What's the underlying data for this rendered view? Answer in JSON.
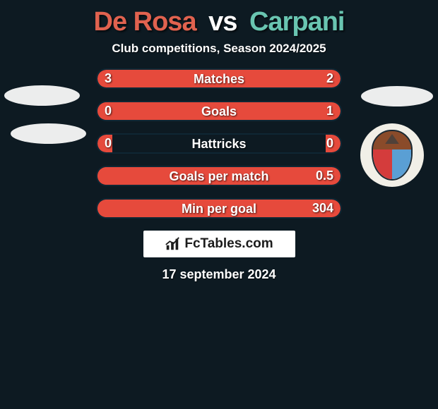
{
  "title": {
    "player1": "De Rosa",
    "vs": "vs",
    "player2": "Carpani",
    "color1": "#e0624f",
    "color_vs": "#ffffff",
    "color2": "#69c5b1"
  },
  "subtitle": "Club competitions, Season 2024/2025",
  "bar_colors": {
    "fill": "#e64a3c",
    "track_border": "#0f2734",
    "background": "#0d1a22"
  },
  "rows": [
    {
      "label": "Matches",
      "left": "3",
      "right": "2",
      "left_pct": 60,
      "right_pct": 40
    },
    {
      "label": "Goals",
      "left": "0",
      "right": "1",
      "left_pct": 6,
      "right_pct": 100
    },
    {
      "label": "Hattricks",
      "left": "0",
      "right": "0",
      "left_pct": 6,
      "right_pct": 6
    },
    {
      "label": "Goals per match",
      "left": "",
      "right": "0.5",
      "left_pct": 6,
      "right_pct": 100
    },
    {
      "label": "Min per goal",
      "left": "",
      "right": "304",
      "left_pct": 6,
      "right_pct": 100
    }
  ],
  "brand": "FcTables.com",
  "date": "17 september 2024"
}
